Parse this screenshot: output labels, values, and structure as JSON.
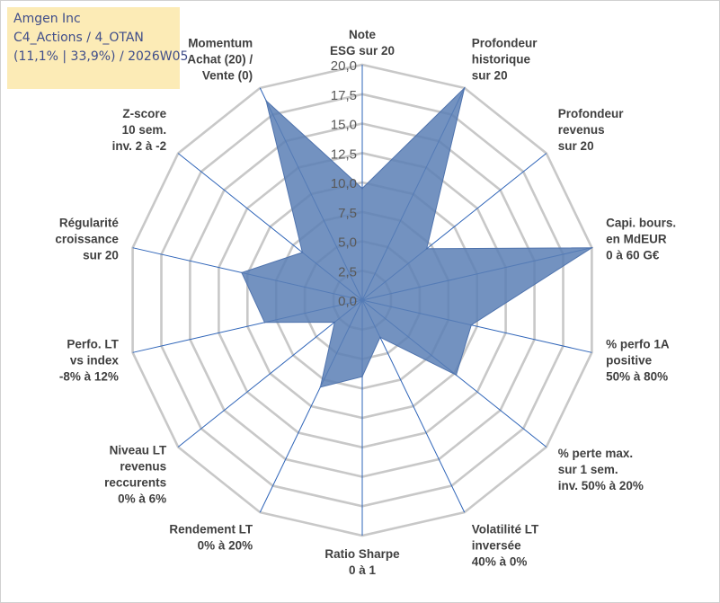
{
  "title_box": {
    "line1": "Amgen Inc",
    "line2": "C4_Actions / 4_OTAN",
    "line3": "(11,1% | 33,9%) / 2026W05"
  },
  "colors": {
    "fill": "#5b7fb5",
    "fill_opacity": "0.85",
    "stroke": "#4f73ad",
    "grid": "#c8c8c8",
    "spoke": "#2e64b8",
    "title_bg": "#fcebb6",
    "title_text": "#3f4d8a"
  },
  "chart_data": {
    "type": "radar",
    "title": "",
    "rmin": 0,
    "rmax": 20,
    "ticks": [
      0,
      2.5,
      5,
      7.5,
      10,
      12.5,
      15,
      17.5,
      20
    ],
    "tick_labels": [
      "0,0",
      "2,5",
      "5,0",
      "7,5",
      "10,0",
      "12,5",
      "15,0",
      "17,5",
      "20,0"
    ],
    "categories": [
      [
        "Note",
        "ESG sur 20"
      ],
      [
        "Profondeur",
        "historique",
        "sur 20"
      ],
      [
        "Profondeur",
        "revenus",
        "sur 20"
      ],
      [
        "Capi. bours.",
        "en MdEUR",
        "0 à 60 G€"
      ],
      [
        "% perfo 1A",
        "positive",
        "50% à 80%"
      ],
      [
        "% perte max.",
        "sur 1 sem.",
        "inv. 50% à 20%"
      ],
      [
        "Volatilité LT",
        "inversée",
        "40% à 0%"
      ],
      [
        "Ratio Sharpe",
        "0 à 1"
      ],
      [
        "Rendement LT",
        "0% à 20%"
      ],
      [
        "Niveau LT",
        "revenus",
        "reccurents",
        "0% à 6%"
      ],
      [
        "Perfo. LT",
        "vs index",
        "-8% à 12%"
      ],
      [
        "Régularité",
        "croissance",
        "sur 20"
      ],
      [
        "Z-score",
        "10 sem.",
        "inv. 2 à -2"
      ],
      [
        "Momentum",
        "Achat (20) /",
        "Vente (0)"
      ]
    ],
    "series": [
      {
        "name": "Amgen Inc",
        "values": [
          9.5,
          20,
          7,
          20,
          9.5,
          10.2,
          3.5,
          6.5,
          8.2,
          3,
          8.5,
          10.5,
          6.5,
          18.8
        ]
      }
    ]
  }
}
